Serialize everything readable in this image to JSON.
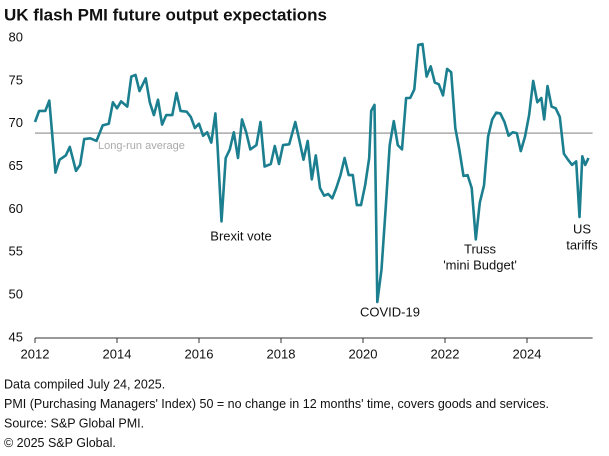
{
  "chart_data": {
    "type": "line",
    "title": "UK flash PMI future output expectations",
    "xlim": [
      2012,
      2025.6
    ],
    "xticks": [
      2012,
      2014,
      2016,
      2018,
      2020,
      2022,
      2024
    ],
    "ylim": [
      45,
      80
    ],
    "yticks": [
      45,
      50,
      55,
      60,
      65,
      70,
      75,
      80
    ],
    "reference_line": {
      "value": 68.9,
      "label": "Long-run average",
      "color": "#aaaaaa"
    },
    "annotations": [
      [
        "Brexit vote"
      ],
      [
        "COVID-19"
      ],
      [
        "Truss",
        "'mini Budget'"
      ],
      [
        "US",
        "tariffs"
      ]
    ],
    "series": [
      {
        "color": "#1b7f8f",
        "x": [
          2012.0,
          2012.1,
          2012.25,
          2012.35,
          2012.5,
          2012.6,
          2012.75,
          2012.85,
          2013.0,
          2013.1,
          2013.2,
          2013.35,
          2013.5,
          2013.65,
          2013.8,
          2013.9,
          2014.0,
          2014.1,
          2014.25,
          2014.35,
          2014.45,
          2014.55,
          2014.7,
          2014.8,
          2014.9,
          2015.0,
          2015.1,
          2015.2,
          2015.35,
          2015.45,
          2015.55,
          2015.7,
          2015.8,
          2015.9,
          2016.0,
          2016.1,
          2016.2,
          2016.3,
          2016.4,
          2016.45,
          2016.55,
          2016.65,
          2016.75,
          2016.85,
          2016.95,
          2017.05,
          2017.15,
          2017.25,
          2017.4,
          2017.5,
          2017.6,
          2017.75,
          2017.85,
          2017.95,
          2018.05,
          2018.2,
          2018.35,
          2018.45,
          2018.55,
          2018.65,
          2018.75,
          2018.85,
          2018.95,
          2019.05,
          2019.15,
          2019.25,
          2019.35,
          2019.45,
          2019.55,
          2019.65,
          2019.75,
          2019.85,
          2019.95,
          2020.05,
          2020.15,
          2020.2,
          2020.28,
          2020.35,
          2020.45,
          2020.55,
          2020.65,
          2020.75,
          2020.85,
          2020.95,
          2021.05,
          2021.15,
          2021.25,
          2021.35,
          2021.45,
          2021.55,
          2021.65,
          2021.75,
          2021.85,
          2021.95,
          2022.05,
          2022.15,
          2022.25,
          2022.35,
          2022.45,
          2022.55,
          2022.65,
          2022.75,
          2022.85,
          2022.95,
          2023.05,
          2023.15,
          2023.25,
          2023.35,
          2023.45,
          2023.55,
          2023.65,
          2023.75,
          2023.85,
          2023.95,
          2024.05,
          2024.15,
          2024.25,
          2024.35,
          2024.42,
          2024.5,
          2024.6,
          2024.7,
          2024.8,
          2024.9,
          2025.0,
          2025.1,
          2025.2,
          2025.28,
          2025.35,
          2025.42,
          2025.5
        ],
        "values": [
          70.2,
          71.5,
          71.5,
          72.7,
          64.3,
          65.8,
          66.3,
          67.3,
          64.5,
          65.2,
          68.2,
          68.3,
          68.0,
          69.8,
          70.0,
          72.5,
          71.8,
          72.6,
          72.0,
          75.5,
          75.7,
          73.8,
          75.3,
          72.5,
          71.0,
          72.8,
          69.9,
          71.0,
          71.0,
          73.6,
          71.5,
          71.4,
          70.8,
          69.5,
          70.0,
          68.6,
          69.0,
          67.8,
          71.2,
          67.5,
          58.6,
          66.0,
          67.0,
          69.0,
          66.0,
          70.5,
          69.0,
          67.0,
          67.5,
          70.2,
          65.0,
          65.3,
          67.4,
          65.3,
          67.5,
          67.6,
          70.2,
          68.0,
          65.8,
          68.0,
          63.5,
          66.3,
          62.5,
          61.6,
          61.8,
          61.3,
          62.5,
          64.0,
          66.0,
          64.0,
          64.0,
          60.5,
          60.5,
          62.8,
          66.0,
          71.5,
          72.2,
          49.2,
          53.0,
          60.0,
          67.5,
          70.3,
          67.5,
          67.0,
          73.0,
          73.0,
          74.0,
          79.2,
          79.3,
          75.5,
          76.7,
          74.8,
          74.6,
          73.3,
          76.4,
          76.0,
          69.5,
          67.0,
          63.9,
          64.0,
          62.5,
          56.5,
          60.8,
          62.8,
          68.5,
          70.5,
          71.3,
          71.2,
          70.2,
          68.6,
          69.0,
          68.9,
          66.8,
          68.5,
          71.0,
          75.0,
          72.5,
          73.0,
          70.5,
          74.4,
          72.0,
          71.8,
          70.8,
          66.5,
          65.8,
          65.2,
          65.6,
          59.1,
          66.2,
          65.2,
          66.0
        ]
      }
    ]
  },
  "notes": [
    "Data compiled July 24, 2025.",
    "PMI (Purchasing Managers' Index) 50 = no change in 12 months' time, covers goods and services.",
    "Source: S&P Global PMI.",
    "© 2025 S&P Global."
  ]
}
